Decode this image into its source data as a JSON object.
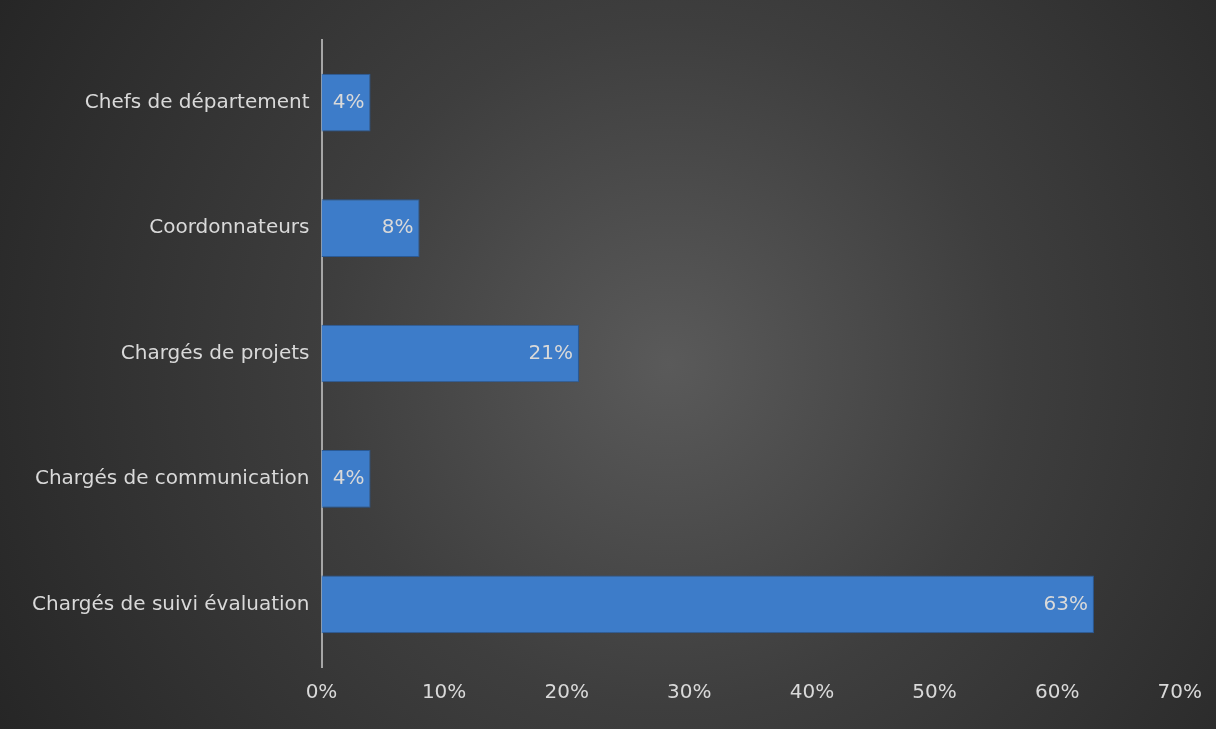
{
  "chart_data": {
    "type": "bar",
    "orientation": "horizontal",
    "categories": [
      "Chefs de département",
      "Coordonnateurs",
      "Chargés de projets",
      "Chargés de communication",
      "Chargés de suivi évaluation"
    ],
    "values": [
      4,
      8,
      21,
      4,
      63
    ],
    "value_labels": [
      "4%",
      "8%",
      "21%",
      "4%",
      "63%"
    ],
    "color": "#3d7cc9",
    "xlim": [
      0,
      70
    ],
    "xticks": [
      {
        "value": 0,
        "label": "0%"
      },
      {
        "value": 10,
        "label": "10%"
      },
      {
        "value": 20,
        "label": "20%"
      },
      {
        "value": 30,
        "label": "30%"
      },
      {
        "value": 40,
        "label": "40%"
      },
      {
        "value": 50,
        "label": "50%"
      },
      {
        "value": 60,
        "label": "60%"
      },
      {
        "value": 70,
        "label": "70%"
      }
    ],
    "grid": false,
    "legend": false
  }
}
